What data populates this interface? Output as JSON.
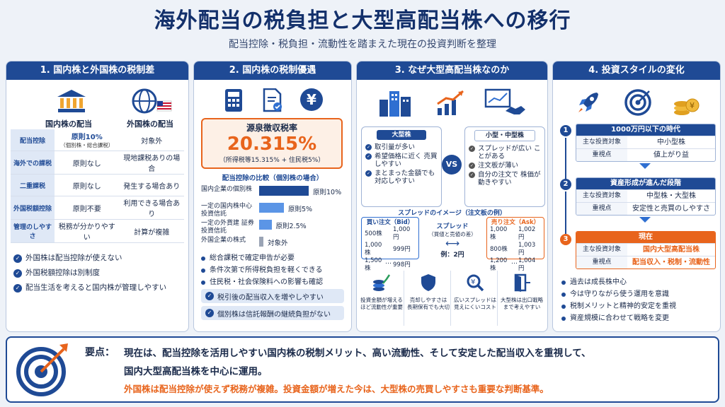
{
  "title": "海外配当の税負担と大型高配当株への移行",
  "subtitle": "配当控除・税負担・流動性を踏まえた現在の投資判断を整理",
  "p1": {
    "head": "1. 国内株と外国株の税制差",
    "col1": "国内株の配当",
    "col2": "外国株の配当",
    "rows": [
      {
        "h": "配当控除",
        "a": "原則10%",
        "a2": "（個別株・総合課税）",
        "b": "対象外"
      },
      {
        "h": "海外での課税",
        "a": "原則なし",
        "a2": "",
        "b": "現地課税ありの場合"
      },
      {
        "h": "二重課税",
        "a": "原則なし",
        "a2": "",
        "b": "発生する場合あり"
      },
      {
        "h": "外国税額控除",
        "a": "原則不要",
        "a2": "",
        "b": "利用できる場合あり"
      },
      {
        "h": "管理のしやすさ",
        "a": "税務が分かりやすい",
        "a2": "",
        "b": "計算が複雑"
      }
    ],
    "bullets": [
      "外国株は配当控除が使えない",
      "外国税額控除は別制度",
      "配当生活を考えると国内株が管理しやすい"
    ]
  },
  "p2": {
    "head": "2. 国内株の税制優遇",
    "yen": "¥",
    "box_label": "源泉徴収税率",
    "box_value": "20.315%",
    "box_note": "（所得税等15.315% + 住民税5%）",
    "cmp_title": "配当控除の比較（個別株の場合）",
    "bars": [
      {
        "label": "国内企業の個別株",
        "value": 10,
        "text": "原則10%"
      },
      {
        "label": "一定の国内株中心 投資信託",
        "value": 5,
        "text": "原則5%"
      },
      {
        "label": "一定の外貨建 証券投資信託",
        "value": 2.5,
        "text": "原則2.5%"
      },
      {
        "label": "外国企業の株式",
        "value": 0,
        "text": "対象外"
      }
    ],
    "dots": [
      "総合課税で確定申告が必要",
      "条件次第で所得税負担を軽くできる",
      "住民税・社会保険料への影響も確認"
    ],
    "green": [
      "税引後の配当収入を増やしやすい",
      "個別株は信託報酬の継続負担がない"
    ]
  },
  "p3": {
    "head": "3. なぜ大型高配当株なのか",
    "big_title": "大型株",
    "big": [
      "取引量が多い",
      "希望価格に近く 売買しやすい",
      "まとまった金額でも 対応しやすい"
    ],
    "vs": "VS",
    "small_title": "小型・中型株",
    "small": [
      "スプレッドが広い ことがある",
      "注文板が薄い",
      "自分の注文で 株価が動きやすい"
    ],
    "spread_title": "スプレッドのイメージ（注文板の例）",
    "bid_title": "買い注文（Bid）",
    "bid": [
      [
        "500株",
        "1,000円"
      ],
      [
        "1,000株",
        "999円"
      ],
      [
        "1,500株",
        "998円"
      ]
    ],
    "ask_title": "売り注文（Ask）",
    "ask": [
      [
        "1,000株",
        "1,002円"
      ],
      [
        "800株",
        "1,003円"
      ],
      [
        "1,200株",
        "1,004円"
      ]
    ],
    "ellipsis": "…",
    "spread_label": "スプレッド",
    "spread_note": "（買値と売値の差）",
    "example": "例：2円",
    "benefits": [
      "投資金額が増える ほど流動性が重要",
      "売却しやすさは 長期保有でも大切",
      "広いスプレッドは 見えにくいコスト",
      "大型株は出口戦略 まで考えやすい"
    ]
  },
  "p4": {
    "head": "4. 投資スタイルの変化",
    "eras": [
      {
        "n": "1",
        "title": "1000万円以下の時代",
        "k1": "主な投資対象",
        "v1": "中小型株",
        "k2": "重視点",
        "v2": "値上がり益"
      },
      {
        "n": "2",
        "title": "資産形成が進んだ段階",
        "k1": "主な投資対象",
        "v1": "中型株・大型株",
        "k2": "重視点",
        "v2": "安定性と売買のしやすさ"
      },
      {
        "n": "3",
        "title": "現在",
        "k1": "主な投資対象",
        "v1": "国内大型高配当株",
        "k2": "重視点",
        "v2": "配当収入・税制・流動性"
      }
    ],
    "dots": [
      "過去は成長株中心",
      "今は守りながら使う運用を意識",
      "税制メリットと精神的安定を重視",
      "資産規模に合わせて戦略を変更"
    ]
  },
  "summary": {
    "label": "要点：",
    "line1": "現在は、配当控除を活用しやすい国内株の税制メリット、高い流動性、そして安定した配当収入を重視して、",
    "line2": "国内大型高配当株を中心に運用。",
    "line3": "外国株は配当控除が使えず税務が複雑。投資金額が増えた今は、大型株の売買しやすさも重要な判断基準。"
  },
  "colors": {
    "navy": "#1f4a95",
    "orange": "#e8641c",
    "green": "#2a9d5c",
    "blue": "#2f6fd1"
  }
}
